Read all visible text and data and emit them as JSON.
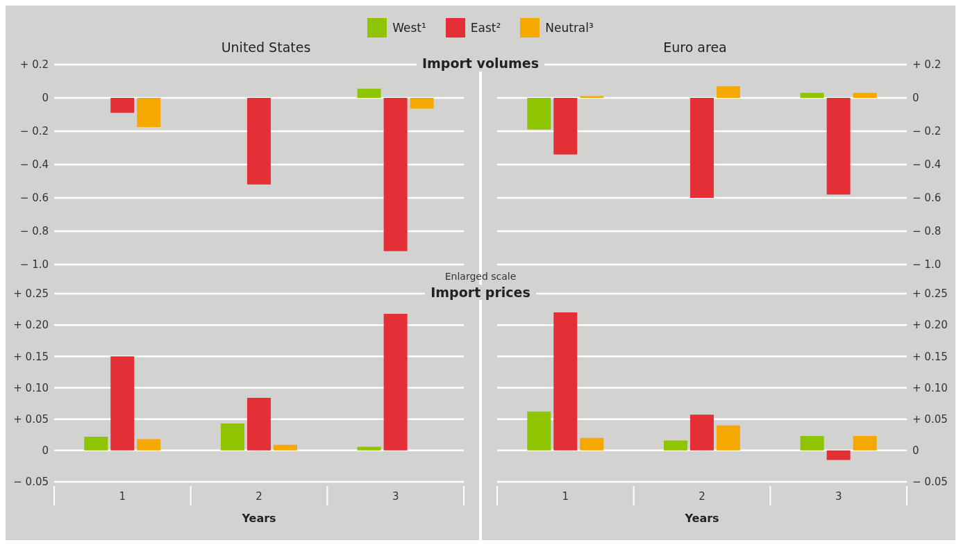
{
  "chart_data": [
    {
      "type": "bar",
      "title": "United States",
      "subtitle": "Import volumes",
      "categories": [
        null,
        null,
        null
      ],
      "legend": "top",
      "grid": "y",
      "series": [
        {
          "name": "West¹",
          "color": "#8fc400",
          "values": [
            0,
            0,
            0.055
          ]
        },
        {
          "name": "East²",
          "color": "#e32f35",
          "values": [
            -0.09,
            -0.52,
            -0.92
          ]
        },
        {
          "name": "Neutral³",
          "color": "#f5a800",
          "values": [
            -0.175,
            0,
            -0.065
          ]
        }
      ],
      "ylim": [
        -1.0,
        0.2
      ],
      "yticks": [
        {
          "value": 0.2,
          "label": "+ 0.2"
        },
        0,
        {
          "value": -0.2,
          "label": "− 0.2"
        },
        {
          "value": -0.4,
          "label": "− 0.4"
        },
        {
          "value": -0.6,
          "label": "− 0.6"
        },
        {
          "value": -0.8,
          "label": "− 0.8"
        },
        {
          "value": -1.0,
          "label": "− 1.0"
        }
      ]
    },
    {
      "type": "bar",
      "title": "Euro area",
      "categories": [
        null,
        null,
        null
      ],
      "grid": "y",
      "series": [
        {
          "color": "#8fc400",
          "axis": "y2",
          "values": [
            -0.19,
            0,
            0.03
          ]
        },
        {
          "color": "#e32f35",
          "axis": "y2",
          "values": [
            -0.34,
            -0.6,
            -0.58
          ]
        },
        {
          "color": "#f5a800",
          "axis": "y2",
          "values": [
            0.01,
            0.07,
            0.03
          ]
        }
      ],
      "y2lim": [
        -1.0,
        0.2
      ],
      "y2ticks": [
        {
          "value": 0.2,
          "label": "+ 0.2"
        },
        0,
        {
          "value": -0.2,
          "label": "− 0.2"
        },
        {
          "value": -0.4,
          "label": "− 0.4"
        },
        {
          "value": -0.6,
          "label": "− 0.6"
        },
        {
          "value": -0.8,
          "label": "− 0.8"
        },
        {
          "value": -1.0,
          "label": "− 1.0"
        }
      ]
    },
    {
      "type": "bar",
      "subtitle": "Import prices",
      "annotations": [
        "Enlarged scale"
      ],
      "xlabel": "Years",
      "categories": [
        "1",
        "2",
        "3"
      ],
      "grid": "y",
      "series": [
        {
          "color": "#8fc400",
          "values": [
            0.022,
            0.043,
            0.006
          ]
        },
        {
          "color": "#e32f35",
          "values": [
            0.15,
            0.084,
            0.218
          ]
        },
        {
          "color": "#f5a800",
          "values": [
            0.018,
            0.009,
            0
          ]
        }
      ],
      "ylim": [
        -0.05,
        0.25
      ],
      "yticks": [
        {
          "value": 0.25,
          "label": "+ 0.25"
        },
        {
          "value": 0.2,
          "label": "+ 0.20"
        },
        {
          "value": 0.15,
          "label": "+ 0.15"
        },
        {
          "value": 0.1,
          "label": "+ 0.10"
        },
        {
          "value": 0.05,
          "label": "+ 0.05"
        },
        0,
        {
          "value": -0.05,
          "label": "− 0.05"
        }
      ]
    },
    {
      "type": "bar",
      "xlabel": "Years",
      "categories": [
        "1",
        "2",
        "3"
      ],
      "grid": "y",
      "series": [
        {
          "color": "#8fc400",
          "axis": "y2",
          "values": [
            0.062,
            0.016,
            0.023
          ]
        },
        {
          "color": "#e32f35",
          "axis": "y2",
          "values": [
            0.22,
            0.057,
            -0.015
          ]
        },
        {
          "color": "#f5a800",
          "axis": "y2",
          "values": [
            0.02,
            0.04,
            0.023
          ]
        }
      ],
      "y2lim": [
        -0.05,
        0.25
      ],
      "y2ticks": [
        {
          "value": 0.25,
          "label": "+ 0.25"
        },
        {
          "value": 0.2,
          "label": "+ 0.20"
        },
        {
          "value": 0.15,
          "label": "+ 0.15"
        },
        {
          "value": 0.1,
          "label": "+ 0.10"
        },
        {
          "value": 0.05,
          "label": "+ 0.05"
        },
        0,
        {
          "value": -0.05,
          "label": "− 0.05"
        }
      ]
    }
  ]
}
